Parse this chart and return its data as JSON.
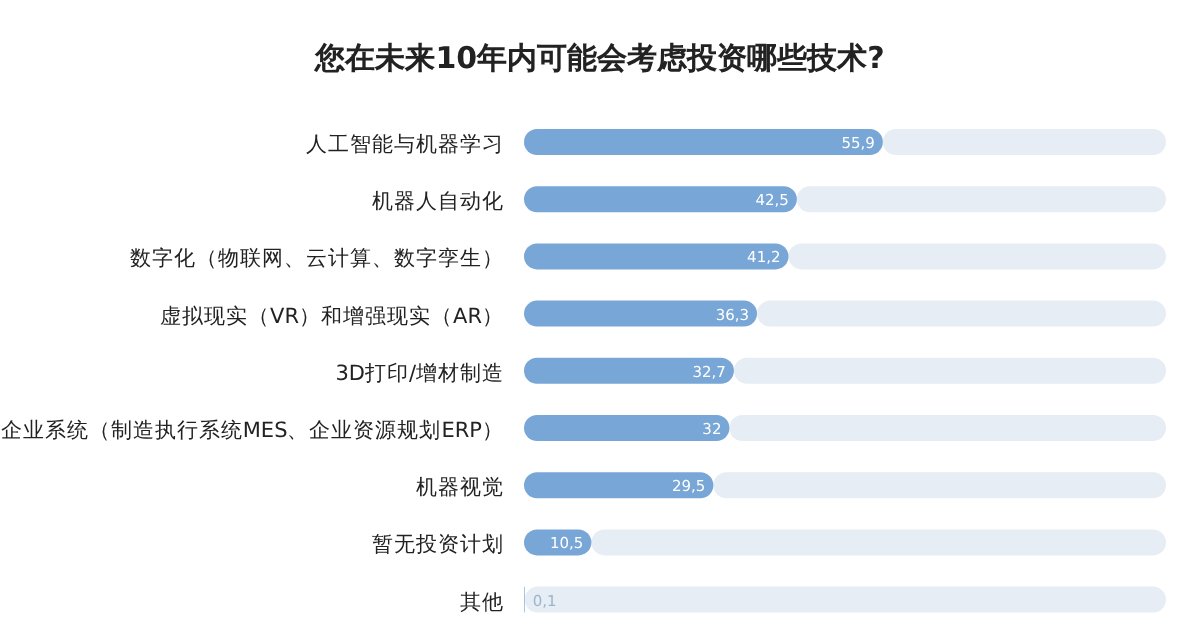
{
  "chart_data": {
    "type": "bar",
    "orientation": "horizontal",
    "title": "您在未来10年内可能会考虑投资哪些技术?",
    "categories": [
      "人工智能与机器学习",
      "机器人自动化",
      "数字化（物联网、云计算、数字孪生）",
      "虚拟现实（VR）和增强现实（AR）",
      "3D打印/增材制造",
      "企业系统（制造执行系统MES、企业资源规划ERP）",
      "机器视觉",
      "暂无投资计划",
      "其他"
    ],
    "values": [
      55.9,
      42.5,
      41.2,
      36.3,
      32.7,
      32,
      29.5,
      10.5,
      0.1
    ],
    "value_labels": [
      "55,9",
      "42,5",
      "41,2",
      "36,3",
      "32,7",
      "32",
      "29,5",
      "10,5",
      "0,1"
    ],
    "color": "#78a6d6",
    "xlim": [
      0,
      100
    ],
    "tick_labels": "y"
  }
}
